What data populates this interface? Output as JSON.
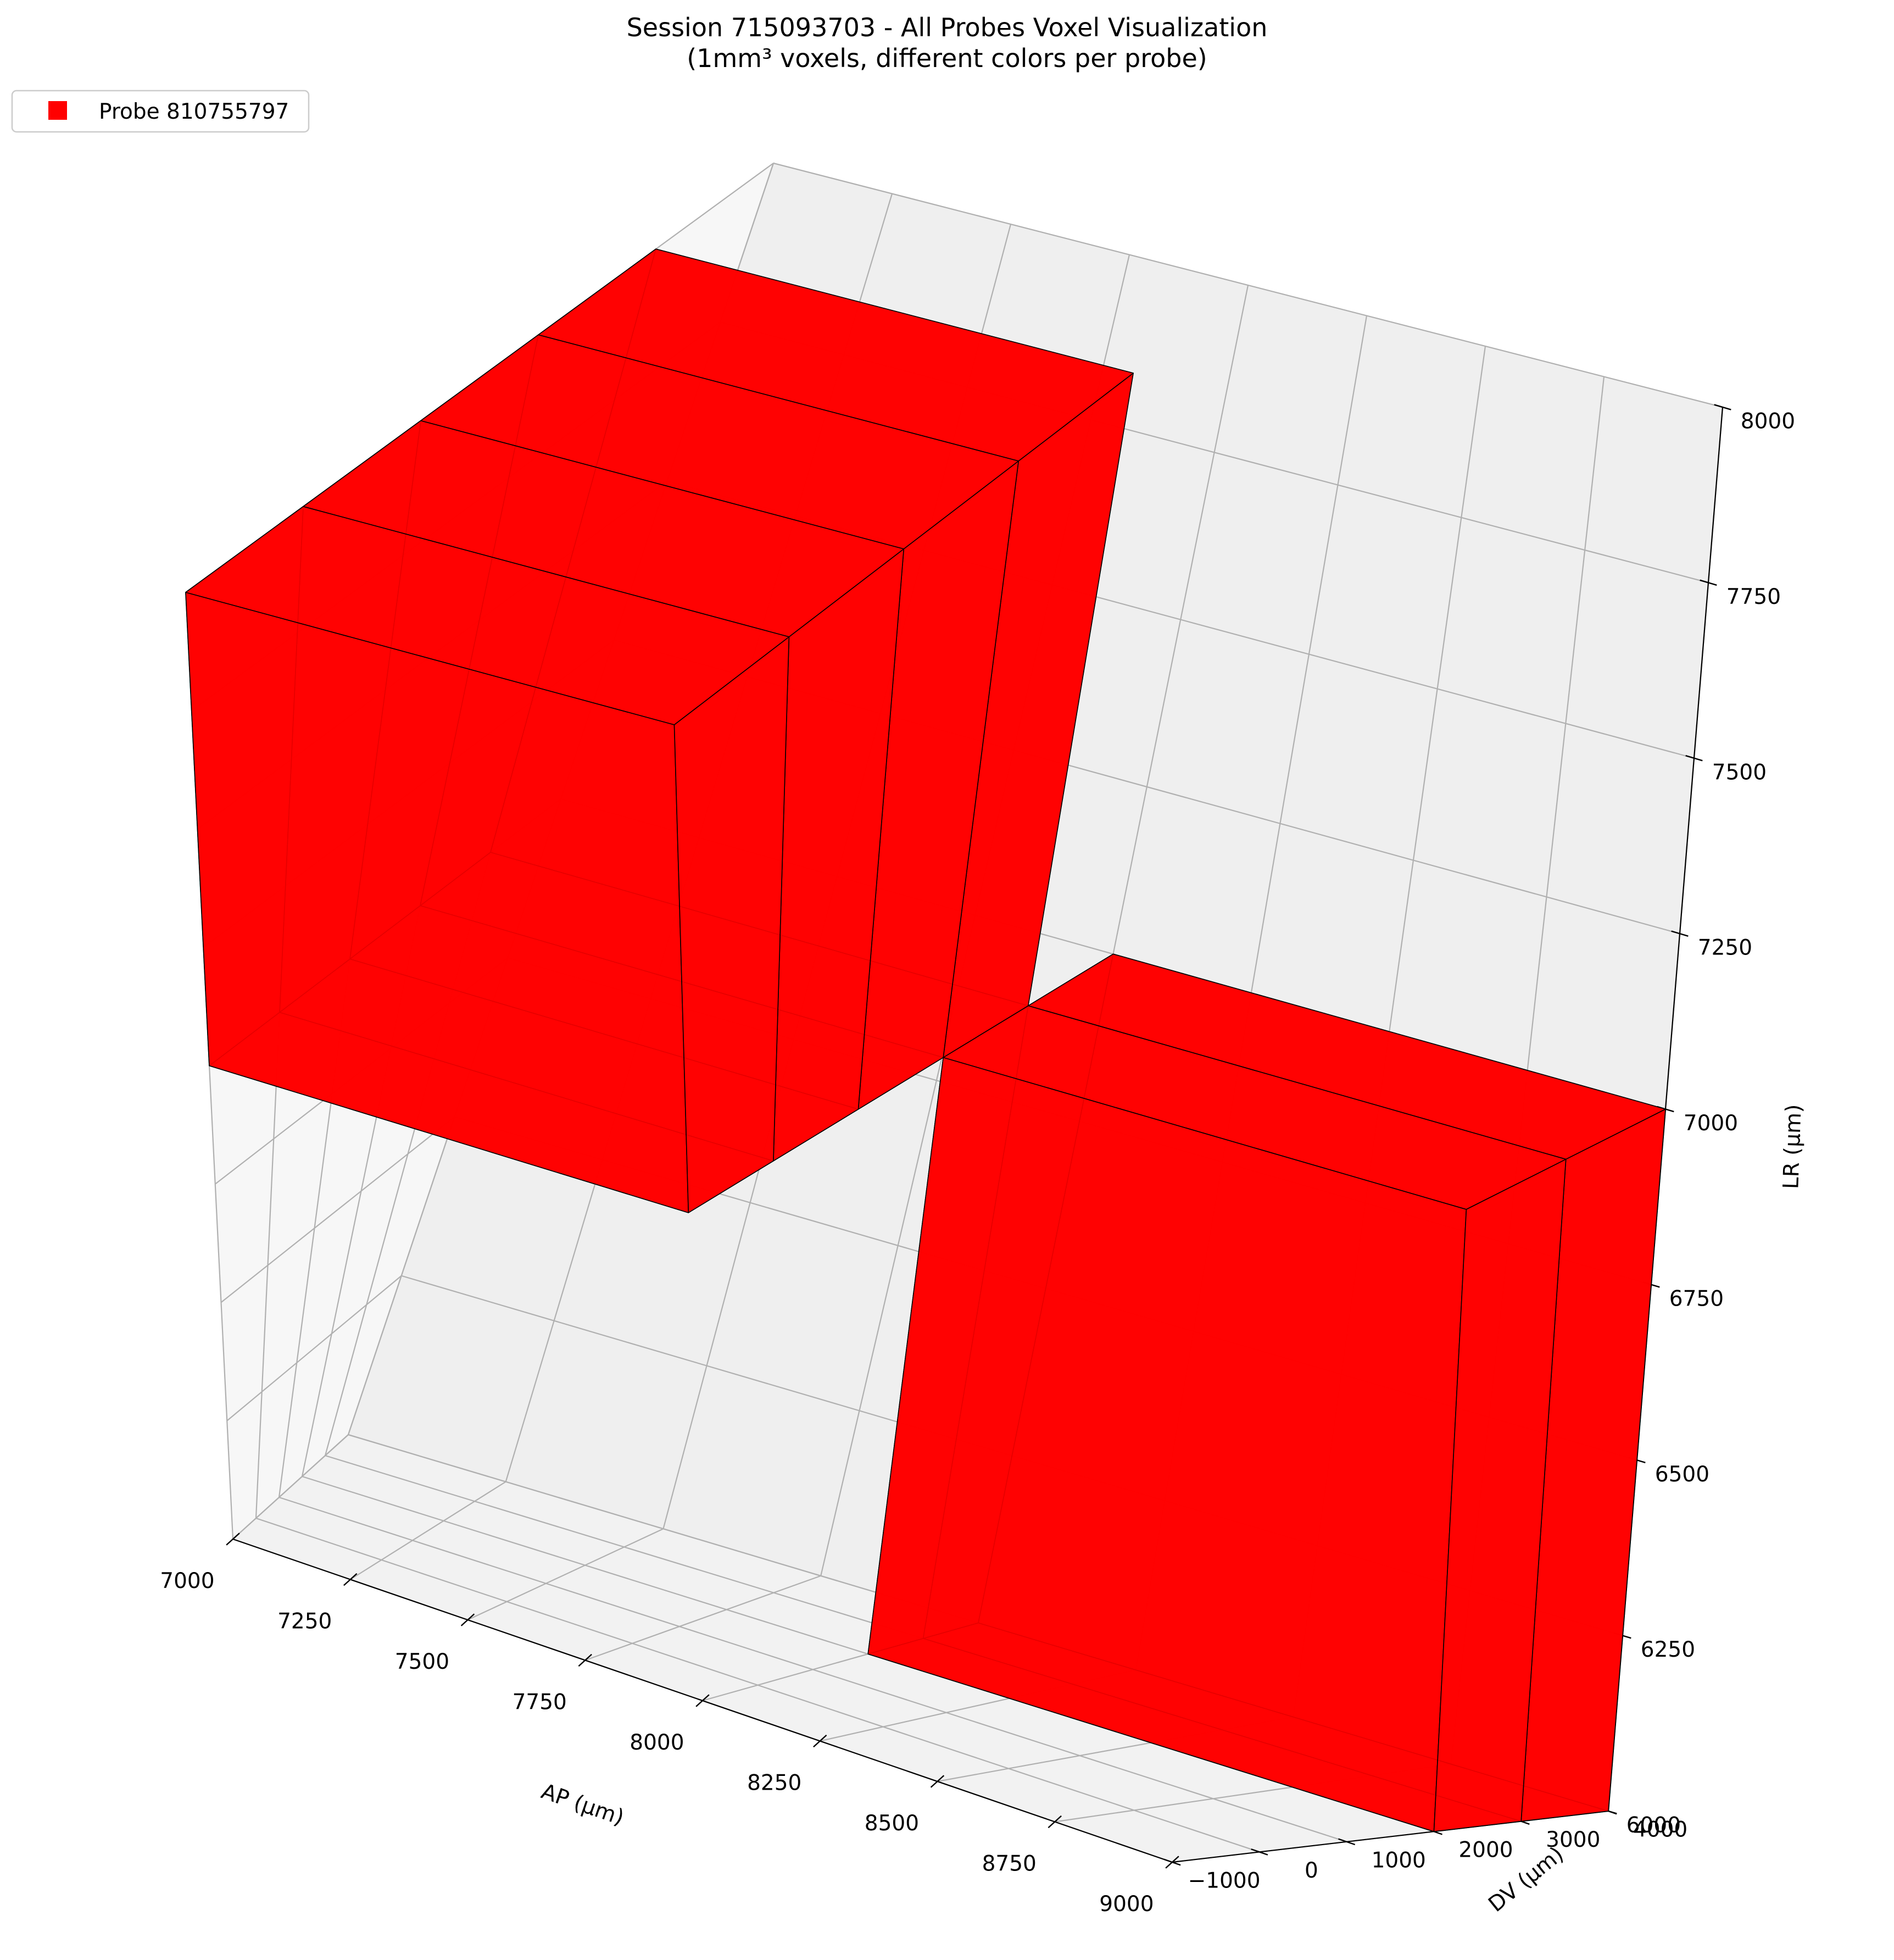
{
  "chart_data": {
    "type": "voxel3d",
    "title": "Session 715093703 - All Probes Voxel Visualization",
    "subtitle": "(1mm³ voxels, different colors per probe)",
    "xlabel": "AP (µm)",
    "ylabel": "DV (µm)",
    "zlabel": "LR (µm)",
    "xlim": [
      7000,
      9000
    ],
    "ylim": [
      -1000,
      4000
    ],
    "zlim": [
      6000,
      8000
    ],
    "x_ticks": [
      "7000",
      "7250",
      "7500",
      "7750",
      "8000",
      "8250",
      "8500",
      "8750",
      "9000"
    ],
    "y_ticks": [
      "−1000",
      "0",
      "1000",
      "2000",
      "3000",
      "4000"
    ],
    "z_ticks": [
      "6000",
      "6250",
      "6500",
      "6750",
      "7000",
      "7250",
      "7500",
      "7750",
      "8000"
    ],
    "grid": true,
    "legend": {
      "position": "top-left",
      "entries": [
        {
          "label": "Probe 810755797",
          "color": "#ff0000"
        }
      ]
    },
    "series": [
      {
        "name": "Probe 810755797",
        "color": "#ff0000",
        "voxel_size": 1000,
        "voxels": [
          {
            "ap": 7000,
            "dv": -1000,
            "lr": 7000
          },
          {
            "ap": 7000,
            "dv": 0,
            "lr": 7000
          },
          {
            "ap": 7000,
            "dv": 1000,
            "lr": 7000
          },
          {
            "ap": 7000,
            "dv": 2000,
            "lr": 7000
          },
          {
            "ap": 8000,
            "dv": 2000,
            "lr": 6000
          },
          {
            "ap": 8000,
            "dv": 3000,
            "lr": 6000
          }
        ]
      }
    ]
  }
}
